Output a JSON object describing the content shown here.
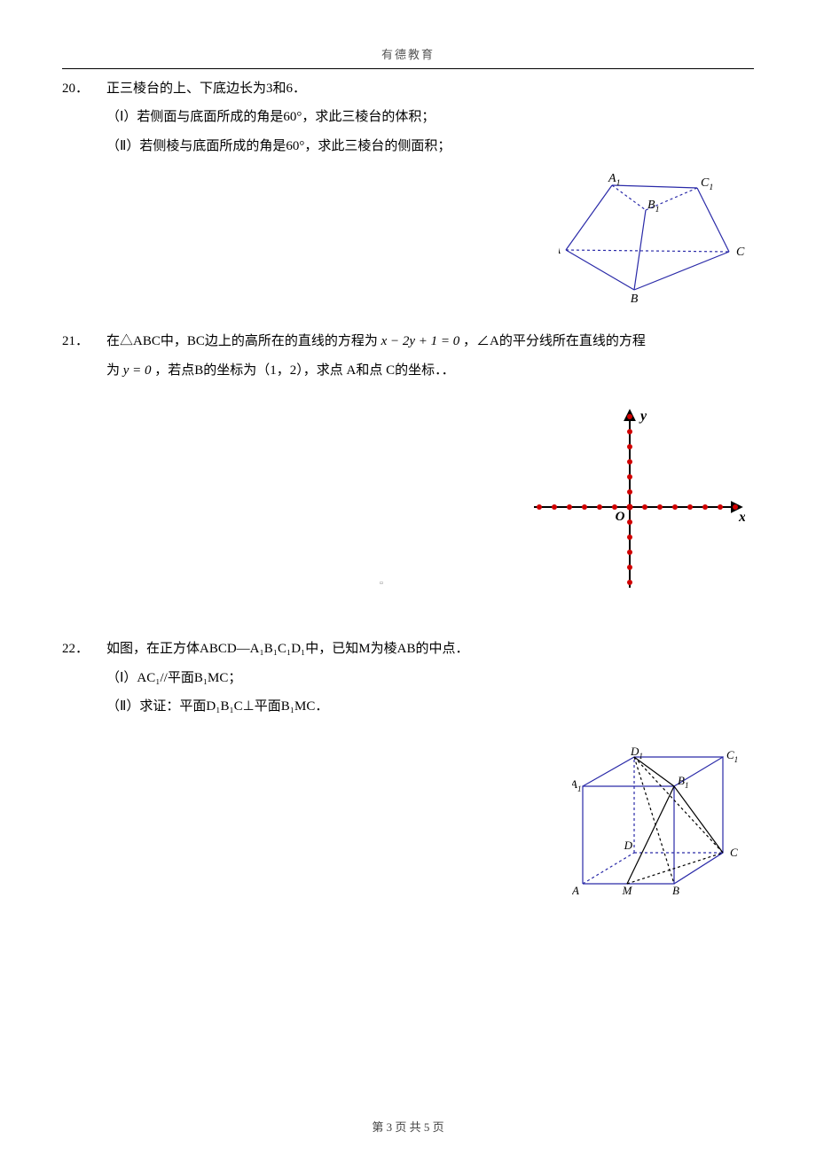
{
  "header": {
    "brand": "有德教育"
  },
  "p20": {
    "num": "20．",
    "stem": "正三棱台的上、下底边长为3和6．",
    "part1": "（Ⅰ）若侧面与底面所成的角是60°，求此三棱台的体积；",
    "part2": "（Ⅱ）若侧棱与底面所成的角是60°，求此三棱台的侧面积；"
  },
  "p21": {
    "num": "21．",
    "stem_a": "在△ABC中，BC边上的高所在的直线的方程为",
    "eq1": "x − 2y + 1 = 0",
    "stem_b": "，∠A的平分线所在直线的方程",
    "line2_a": "为",
    "eq2": "y = 0",
    "line2_b": "，若点B的坐标为（1，2），求点 A和点 C的坐标．．"
  },
  "p22": {
    "num": "22．",
    "stem": "如图，在正方体ABCD—A₁B₁C₁D₁中，已知M为棱AB的中点．",
    "part1": "（Ⅰ）AC₁//平面B₁MC；",
    "part2": "（Ⅱ）求证：平面D₁B₁C⊥平面B₁MC．"
  },
  "footer": {
    "text": "第 3 页 共 5 页"
  },
  "fig20": {
    "stroke": "#2a2aa8",
    "fill": "none",
    "text_color": "#000",
    "labels": {
      "A": "A",
      "B": "B",
      "C": "C",
      "A1": "A",
      "B1": "B",
      "C1": "C",
      "one": "1"
    },
    "A": [
      8,
      95
    ],
    "B": [
      85,
      140
    ],
    "C": [
      192,
      97
    ],
    "A1": [
      60,
      22
    ],
    "B1": [
      98,
      50
    ],
    "C1": [
      156,
      25
    ]
  },
  "fig21": {
    "axis_color": "#000",
    "dot_color": "#d00000",
    "origin_label": "O",
    "x_label": "x",
    "y_label": "y",
    "x_range": [
      -6,
      7
    ],
    "y_range": [
      -5,
      6
    ],
    "spacing": 17
  },
  "fig22": {
    "stroke": "#2a2aa8",
    "fill": "none",
    "text_color": "#000",
    "dash": "3,3",
    "labels": {
      "A": "A",
      "B": "B",
      "C": "C",
      "D": "D",
      "A1": "A",
      "B1": "B",
      "C1": "C",
      "D1": "D",
      "M": "M",
      "one": "1"
    },
    "A": [
      12,
      155
    ],
    "B": [
      115,
      155
    ],
    "C": [
      170,
      120
    ],
    "D": [
      70,
      120
    ],
    "A1": [
      12,
      45
    ],
    "B1": [
      115,
      45
    ],
    "C1": [
      170,
      12
    ],
    "D1": [
      70,
      12
    ],
    "M": [
      62,
      155
    ]
  }
}
